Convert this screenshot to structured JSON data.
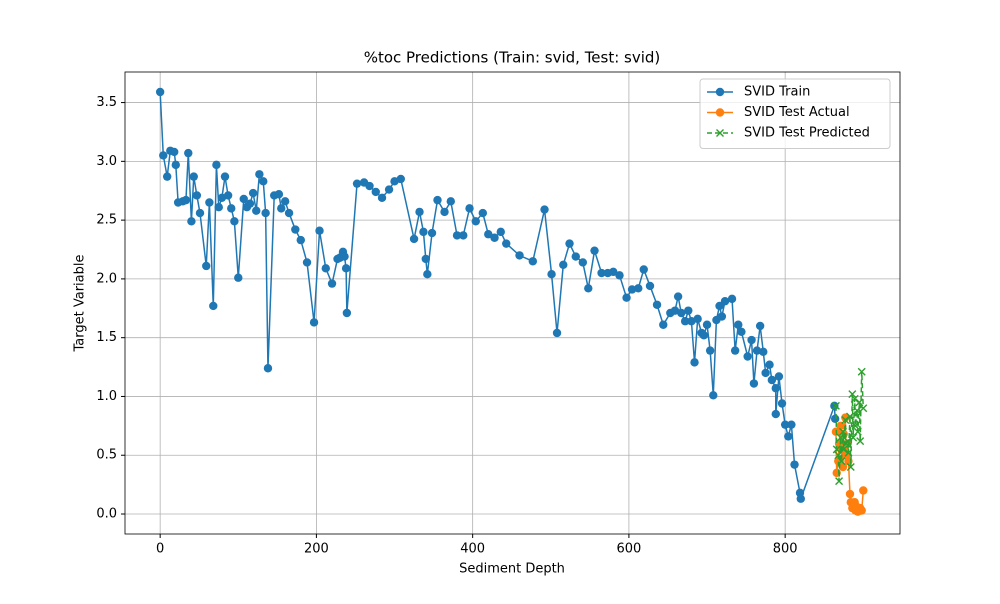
{
  "chart_data": {
    "type": "line",
    "title": "%toc Predictions (Train: svid, Test: svid)",
    "x_label": "Sediment Depth",
    "y_label": "Target Variable",
    "xlim": [
      -45,
      947
    ],
    "ylim": [
      -0.17,
      3.76
    ],
    "xticks": [
      0,
      200,
      400,
      600,
      800
    ],
    "yticks": [
      {
        "value": 0,
        "label": "0.0"
      },
      0.5,
      {
        "value": 1,
        "label": "1.0"
      },
      1.5,
      {
        "value": 2,
        "label": "2.0"
      },
      2.5,
      {
        "value": 3,
        "label": "3.0"
      },
      3.5
    ],
    "grid": true,
    "legend": "upper right",
    "series": [
      {
        "name": "SVID Train",
        "color": "#1f77b4",
        "marker": "o",
        "linestyle": "solid",
        "x": [
          0,
          4,
          9,
          13,
          18,
          20,
          23,
          29,
          33,
          36,
          40,
          43,
          47,
          51,
          59,
          63,
          68,
          72,
          75,
          79,
          83,
          87,
          91,
          95,
          100,
          107,
          111,
          115,
          119,
          123,
          127,
          132,
          135,
          138,
          146,
          152,
          155,
          160,
          165,
          173,
          180,
          188,
          197,
          204,
          212,
          220,
          227,
          230,
          234,
          236,
          238,
          239,
          252,
          261,
          268,
          276,
          284,
          293,
          300,
          308,
          325,
          332,
          337,
          340,
          342,
          348,
          355,
          364,
          372,
          380,
          388,
          396,
          404,
          413,
          420,
          428,
          436,
          443,
          460,
          477,
          492,
          501,
          508,
          516,
          524,
          532,
          541,
          548,
          556,
          565,
          573,
          580,
          588,
          597,
          604,
          612,
          619,
          627,
          636,
          644,
          653,
          659,
          663,
          667,
          672,
          676,
          680,
          684,
          688,
          693,
          696,
          700,
          704,
          708,
          712,
          716,
          719,
          723,
          732,
          736,
          740,
          744,
          752,
          757,
          760,
          764,
          768,
          772,
          775,
          780,
          783,
          788,
          788,
          792,
          796,
          800,
          804,
          808,
          812,
          819,
          820,
          863,
          864
        ],
        "values": [
          3.59,
          3.05,
          2.87,
          3.09,
          3.08,
          2.97,
          2.65,
          2.66,
          2.67,
          3.07,
          2.49,
          2.87,
          2.71,
          2.56,
          2.11,
          2.65,
          1.77,
          2.97,
          2.61,
          2.69,
          2.87,
          2.71,
          2.6,
          2.49,
          2.01,
          2.68,
          2.61,
          2.64,
          2.73,
          2.58,
          2.89,
          2.83,
          2.56,
          1.24,
          2.71,
          2.72,
          2.6,
          2.66,
          2.56,
          2.42,
          2.33,
          2.14,
          1.63,
          2.41,
          2.09,
          1.96,
          2.17,
          2.18,
          2.23,
          2.19,
          2.09,
          1.71,
          2.81,
          2.82,
          2.79,
          2.74,
          2.69,
          2.76,
          2.83,
          2.85,
          2.34,
          2.57,
          2.4,
          2.17,
          2.04,
          2.39,
          2.67,
          2.57,
          2.66,
          2.37,
          2.37,
          2.6,
          2.49,
          2.56,
          2.38,
          2.35,
          2.4,
          2.3,
          2.2,
          2.15,
          2.59,
          2.04,
          1.54,
          2.12,
          2.3,
          2.19,
          2.14,
          1.92,
          2.24,
          2.05,
          2.05,
          2.06,
          2.03,
          1.84,
          1.91,
          1.92,
          2.08,
          1.94,
          1.78,
          1.61,
          1.71,
          1.73,
          1.85,
          1.71,
          1.64,
          1.73,
          1.64,
          1.29,
          1.66,
          1.54,
          1.52,
          1.61,
          1.39,
          1.01,
          1.65,
          1.77,
          1.68,
          1.81,
          1.83,
          1.39,
          1.61,
          1.55,
          1.34,
          1.48,
          1.11,
          1.39,
          1.6,
          1.38,
          1.2,
          1.27,
          1.14,
          1.07,
          0.85,
          1.17,
          0.94,
          0.76,
          0.66,
          0.76,
          0.42,
          0.18,
          0.13,
          0.92,
          0.81
        ]
      },
      {
        "name": "SVID Test Actual",
        "color": "#ff7f0e",
        "marker": "o",
        "linestyle": "solid",
        "x": [
          865,
          866,
          868,
          869,
          871,
          872,
          874,
          875,
          877,
          878,
          880,
          881,
          883,
          884,
          886,
          887,
          889,
          890,
          892,
          893,
          895,
          896,
          898,
          900
        ],
        "values": [
          0.7,
          0.35,
          0.45,
          0.6,
          0.75,
          0.55,
          0.4,
          0.68,
          0.82,
          0.5,
          0.6,
          0.45,
          0.17,
          0.1,
          0.05,
          0.08,
          0.1,
          0.03,
          0.06,
          0.02,
          0.04,
          0.05,
          0.03,
          0.2
        ]
      },
      {
        "name": "SVID Test Predicted",
        "color": "#2ca02c",
        "marker": "x",
        "linestyle": "dashed",
        "x": [
          865,
          866,
          868,
          869,
          871,
          872,
          874,
          875,
          877,
          878,
          880,
          881,
          883,
          884,
          886,
          887,
          889,
          890,
          892,
          893,
          895,
          896,
          898,
          900
        ],
        "values": [
          0.92,
          0.55,
          0.5,
          0.28,
          0.65,
          0.45,
          0.7,
          0.55,
          0.8,
          0.6,
          0.62,
          0.52,
          0.83,
          0.4,
          1.02,
          0.65,
          0.98,
          0.75,
          0.88,
          0.7,
          0.95,
          0.62,
          1.21,
          0.9
        ]
      }
    ]
  }
}
